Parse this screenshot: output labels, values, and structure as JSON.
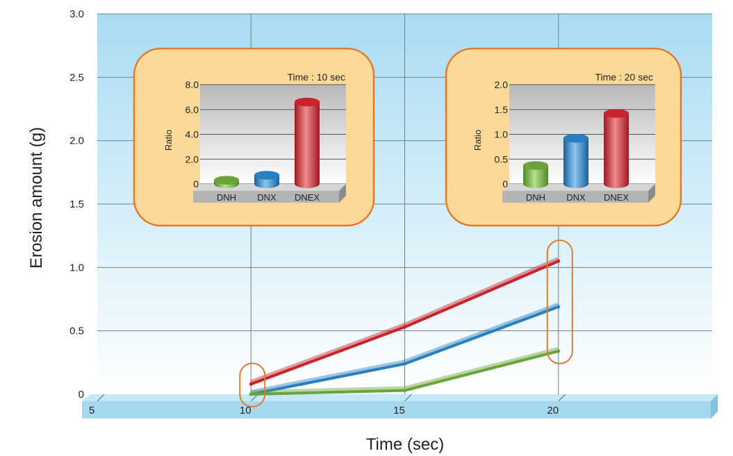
{
  "chart_data": [
    {
      "type": "line",
      "xlabel": "Time (sec)",
      "ylabel": "Erosion amount (g)",
      "xlim": [
        5,
        25
      ],
      "ylim": [
        0,
        3.0
      ],
      "x_ticks": [
        "5",
        "10",
        "15",
        "20"
      ],
      "y_ticks": [
        "0",
        "0.5",
        "1.0",
        "1.5",
        "2.0",
        "2.5",
        "3.0"
      ],
      "grid": true,
      "x": [
        10,
        15,
        20
      ],
      "series": [
        {
          "color": "#c8242b",
          "values": [
            0.08,
            0.53,
            1.05
          ]
        },
        {
          "color": "#2a7fc0",
          "values": [
            0.0,
            0.24,
            0.69
          ]
        },
        {
          "color": "#6aa33a",
          "values": [
            0.0,
            0.03,
            0.34
          ]
        }
      ],
      "highlight_x": [
        10,
        20
      ]
    },
    {
      "type": "bar",
      "title": "Time : 10 sec",
      "ylabel": "Ratio",
      "categories": [
        "DNH",
        "DNX",
        "DNEX"
      ],
      "values": [
        0.3,
        0.7,
        6.6
      ],
      "colors": [
        "#6aa33a",
        "#2a7fc0",
        "#c8242b"
      ],
      "ylim": [
        0,
        8.0
      ],
      "y_ticks": [
        "0",
        "2.0",
        "4.0",
        "6.0",
        "8.0"
      ]
    },
    {
      "type": "bar",
      "title": "Time : 20 sec",
      "ylabel": "Ratio",
      "categories": [
        "DNH",
        "DNX",
        "DNEX"
      ],
      "values": [
        0.37,
        0.92,
        1.42
      ],
      "colors": [
        "#6aa33a",
        "#2a7fc0",
        "#c8242b"
      ],
      "ylim": [
        0,
        2.0
      ],
      "y_ticks": [
        "0",
        "0.5",
        "1.0",
        "1.5",
        "2.0"
      ]
    }
  ]
}
